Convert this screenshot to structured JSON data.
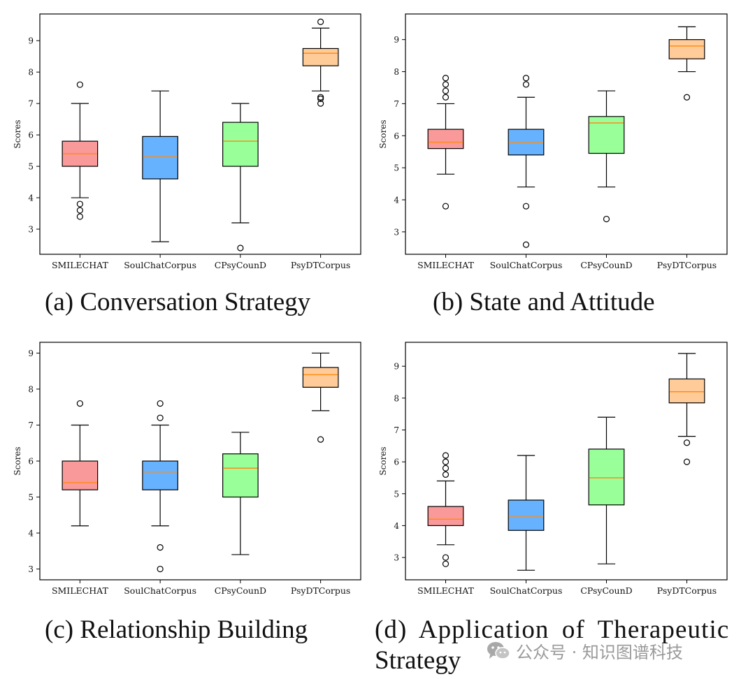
{
  "chart_data": [
    {
      "type": "boxplot",
      "caption": "(a) Conversation Strategy",
      "ylabel": "Scores",
      "ylim": [
        2.2,
        9.85
      ],
      "yticks": [
        "3",
        "4",
        "5",
        "6",
        "7",
        "8",
        "9"
      ],
      "categories": [
        "SMILECHAT",
        "SoulChatCorpus",
        "CPsyCounD",
        "PsyDTCorpus"
      ],
      "boxes": [
        {
          "whislo": 4.0,
          "q1": 5.0,
          "med": 5.4,
          "q3": 5.8,
          "whishi": 7.0,
          "fliers": [
            3.4,
            3.6,
            3.8,
            7.6
          ]
        },
        {
          "whislo": 2.6,
          "q1": 4.6,
          "med": 5.3,
          "q3": 5.95,
          "whishi": 7.4,
          "fliers": []
        },
        {
          "whislo": 3.2,
          "q1": 5.0,
          "med": 5.8,
          "q3": 6.4,
          "whishi": 7.0,
          "fliers": [
            2.4
          ]
        },
        {
          "whislo": 7.4,
          "q1": 8.2,
          "med": 8.6,
          "q3": 8.75,
          "whishi": 9.4,
          "fliers": [
            7.0,
            7.15,
            7.2,
            9.6
          ]
        }
      ]
    },
    {
      "type": "boxplot",
      "caption": "(b) State and Attitude",
      "ylabel": "Scores",
      "ylim": [
        2.3,
        9.8
      ],
      "yticks": [
        "3",
        "4",
        "5",
        "6",
        "7",
        "8",
        "9"
      ],
      "categories": [
        "SMILECHAT",
        "SoulChatCorpus",
        "CPsyCounD",
        "PsyDTCorpus"
      ],
      "boxes": [
        {
          "whislo": 4.8,
          "q1": 5.6,
          "med": 5.8,
          "q3": 6.2,
          "whishi": 7.0,
          "fliers": [
            3.8,
            7.2,
            7.4,
            7.6,
            7.8
          ]
        },
        {
          "whislo": 4.4,
          "q1": 5.4,
          "med": 5.8,
          "q3": 6.2,
          "whishi": 7.2,
          "fliers": [
            2.6,
            3.8,
            7.6,
            7.8
          ]
        },
        {
          "whislo": 4.4,
          "q1": 5.45,
          "med": 6.4,
          "q3": 6.6,
          "whishi": 7.4,
          "fliers": [
            3.4
          ]
        },
        {
          "whislo": 8.0,
          "q1": 8.4,
          "med": 8.8,
          "q3": 9.0,
          "whishi": 9.4,
          "fliers": [
            7.2
          ]
        }
      ]
    },
    {
      "type": "boxplot",
      "caption": "(c) Relationship Building",
      "ylabel": "Scores",
      "ylim": [
        2.7,
        9.3
      ],
      "yticks": [
        "3",
        "4",
        "5",
        "6",
        "7",
        "8",
        "9"
      ],
      "categories": [
        "SMILECHAT",
        "SoulChatCorpus",
        "CPsyCounD",
        "PsyDTCorpus"
      ],
      "boxes": [
        {
          "whislo": 4.2,
          "q1": 5.2,
          "med": 5.4,
          "q3": 6.0,
          "whishi": 7.0,
          "fliers": [
            7.6
          ]
        },
        {
          "whislo": 4.2,
          "q1": 5.2,
          "med": 5.7,
          "q3": 6.0,
          "whishi": 7.0,
          "fliers": [
            3.0,
            3.6,
            7.2,
            7.6
          ]
        },
        {
          "whislo": 3.4,
          "q1": 5.0,
          "med": 5.8,
          "q3": 6.2,
          "whishi": 6.8,
          "fliers": []
        },
        {
          "whislo": 7.4,
          "q1": 8.05,
          "med": 8.4,
          "q3": 8.6,
          "whishi": 9.0,
          "fliers": [
            6.6
          ]
        }
      ]
    },
    {
      "type": "boxplot",
      "caption_lines": [
        "(d) Application of Therapeutic",
        "Strategy"
      ],
      "ylabel": "Scores",
      "ylim": [
        2.3,
        9.75
      ],
      "yticks": [
        "3",
        "4",
        "5",
        "6",
        "7",
        "8",
        "9"
      ],
      "categories": [
        "SMILECHAT",
        "SoulChatCorpus",
        "CPsyCounD",
        "PsyDTCorpus"
      ],
      "boxes": [
        {
          "whislo": 3.4,
          "q1": 4.0,
          "med": 4.2,
          "q3": 4.6,
          "whishi": 5.4,
          "fliers": [
            2.8,
            3.0,
            5.6,
            5.8,
            6.0,
            6.2
          ]
        },
        {
          "whislo": 2.6,
          "q1": 3.85,
          "med": 4.3,
          "q3": 4.8,
          "whishi": 6.2,
          "fliers": []
        },
        {
          "whislo": 2.8,
          "q1": 4.65,
          "med": 5.5,
          "q3": 6.4,
          "whishi": 7.4,
          "fliers": []
        },
        {
          "whislo": 6.8,
          "q1": 7.85,
          "med": 8.2,
          "q3": 8.6,
          "whishi": 9.4,
          "fliers": [
            6.0,
            6.6
          ]
        }
      ]
    }
  ],
  "colors": {
    "box_fills": [
      "#f99999",
      "#66b2ff",
      "#99ff99",
      "#ffcc99"
    ],
    "median": "#ff8c1a",
    "axis": "#000000"
  },
  "watermark": {
    "text": "公众号 · 知识图谱科技",
    "icon": "wechat-icon"
  }
}
